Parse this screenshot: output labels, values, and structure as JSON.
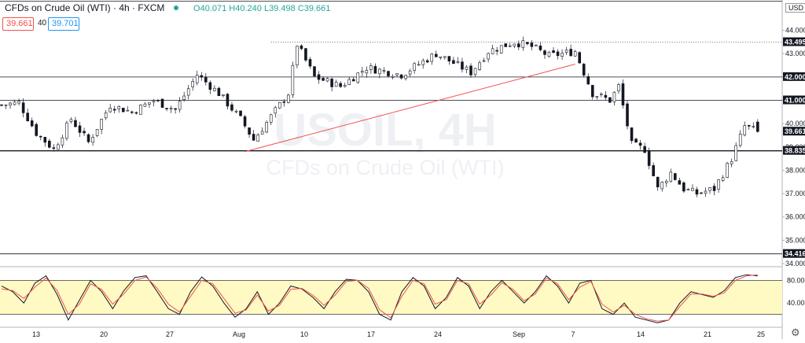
{
  "header": {
    "title": "CFDs on Crude Oil (WTI) · 4h · FXCM",
    "ohlc": "O40.071 H40.240 L39.498 C39.661",
    "bid": "39.661",
    "spread": "40",
    "ask": "39.701",
    "currency": "USD"
  },
  "watermark": {
    "symbol": "USOIL, 4H",
    "name": "CFDs on Crude Oil (WTI)"
  },
  "colors": {
    "up": "#26a69a",
    "down": "#ef5350",
    "trendline": "#ef5350",
    "grid": "#e0e3eb",
    "band": "#fff9c4"
  },
  "chart_data": [
    {
      "type": "candlestick",
      "price_axis_ticks": [
        "44.000",
        "43.000",
        "42.000",
        "41.000",
        "40.000",
        "39.000",
        "38.000",
        "37.000",
        "36.000",
        "35.000",
        "34.000"
      ],
      "price_axis_highlighted": [
        "43.495",
        "42.000",
        "41.000",
        "39.661",
        "38.835",
        "34.416"
      ],
      "ylim": [
        33.9,
        45.3
      ],
      "date_ticks": [
        "13",
        "20",
        "27",
        "Aug",
        "10",
        "17",
        "24",
        "Sep",
        "7",
        "14",
        "21",
        "25"
      ],
      "horizontal_levels": [
        45.25,
        42.0,
        41.0,
        38.835,
        34.416
      ],
      "dotted_level": 43.495,
      "trendline": {
        "from": {
          "x_index": 56,
          "price": 38.8
        },
        "to": {
          "x_index": 132,
          "price": 42.55
        }
      },
      "close_path": [
        [
          0,
          40.8
        ],
        [
          4,
          40.9
        ],
        [
          8,
          39.6
        ],
        [
          12,
          38.9
        ],
        [
          16,
          40.2
        ],
        [
          20,
          39.2
        ],
        [
          25,
          40.8
        ],
        [
          30,
          40.5
        ],
        [
          35,
          41.0
        ],
        [
          40,
          40.6
        ],
        [
          45,
          42.1
        ],
        [
          50,
          41.3
        ],
        [
          55,
          40.2
        ],
        [
          58,
          39.3
        ],
        [
          62,
          40.3
        ],
        [
          66,
          41.3
        ],
        [
          68,
          43.4
        ],
        [
          72,
          42.0
        ],
        [
          78,
          41.6
        ],
        [
          84,
          42.4
        ],
        [
          92,
          42.1
        ],
        [
          100,
          43.0
        ],
        [
          108,
          42.2
        ],
        [
          112,
          43.1
        ],
        [
          118,
          43.5
        ],
        [
          122,
          43.3
        ],
        [
          126,
          42.9
        ],
        [
          132,
          43.1
        ],
        [
          136,
          41.3
        ],
        [
          140,
          41.0
        ],
        [
          142,
          41.6
        ],
        [
          145,
          39.1
        ],
        [
          148,
          38.9
        ],
        [
          151,
          37.2
        ],
        [
          154,
          37.9
        ],
        [
          157,
          37.2
        ],
        [
          160,
          37.0
        ],
        [
          164,
          37.2
        ],
        [
          168,
          38.5
        ],
        [
          171,
          39.9
        ],
        [
          174,
          39.66
        ]
      ],
      "last_price": 39.661
    },
    {
      "type": "line",
      "indicator": "stochastic",
      "oscillator_ticks": [
        "80.00",
        "40.00"
      ],
      "band": [
        20,
        80
      ],
      "ylim": [
        0,
        100
      ],
      "series": [
        {
          "color": "#131722",
          "values": [
            70,
            60,
            40,
            75,
            88,
            55,
            10,
            45,
            80,
            60,
            30,
            62,
            85,
            88,
            60,
            30,
            20,
            60,
            86,
            70,
            40,
            15,
            30,
            60,
            20,
            40,
            70,
            65,
            50,
            30,
            60,
            82,
            80,
            60,
            20,
            10,
            60,
            85,
            70,
            30,
            50,
            85,
            70,
            30,
            60,
            80,
            60,
            40,
            60,
            88,
            70,
            40,
            75,
            80,
            30,
            20,
            40,
            15,
            10,
            5,
            10,
            40,
            60,
            55,
            50,
            62,
            85,
            90,
            88
          ]
        },
        {
          "color": "#ef5350",
          "values": [
            65,
            62,
            48,
            68,
            84,
            62,
            20,
            38,
            74,
            64,
            38,
            56,
            80,
            86,
            66,
            38,
            24,
            52,
            80,
            74,
            48,
            22,
            28,
            54,
            26,
            36,
            64,
            66,
            54,
            36,
            54,
            78,
            80,
            66,
            28,
            14,
            52,
            80,
            74,
            38,
            46,
            80,
            74,
            38,
            54,
            76,
            64,
            44,
            56,
            84,
            74,
            46,
            68,
            78,
            38,
            24,
            36,
            20,
            12,
            8,
            10,
            34,
            56,
            56,
            52,
            58,
            80,
            88,
            90
          ]
        }
      ]
    }
  ]
}
